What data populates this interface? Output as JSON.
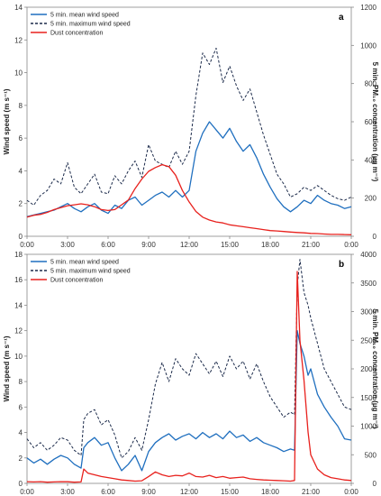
{
  "chart_data": [
    {
      "type": "line",
      "panel_label": "a",
      "x_label_ticks": [
        "0:00",
        "3:00",
        "6:00",
        "9:00",
        "12:00",
        "15:00",
        "18:00",
        "21:00",
        "0:00"
      ],
      "xlim": [
        0,
        24
      ],
      "ylabel": "Wind speed (m s⁻¹)",
      "ylim": [
        0,
        14
      ],
      "yticks": [
        0,
        2,
        4,
        6,
        8,
        10,
        12,
        14
      ],
      "y2label": "5 min. PM₁₀ concentration (µg m⁻³)",
      "y2lim": [
        0,
        1200
      ],
      "y2ticks": [
        0,
        200,
        400,
        600,
        800,
        1000,
        1200
      ],
      "legend_position": "top-left",
      "series": [
        {
          "name": "5 min. mean wind speed",
          "color": "#1f6fbf",
          "style": "solid",
          "axis": "left",
          "x": [
            0,
            0.5,
            1,
            1.5,
            2,
            2.5,
            3,
            3.5,
            4,
            4.5,
            5,
            5.5,
            6,
            6.5,
            7,
            7.5,
            8,
            8.5,
            9,
            9.5,
            10,
            10.5,
            11,
            11.5,
            12,
            12.5,
            13,
            13.5,
            14,
            14.5,
            15,
            15.5,
            16,
            16.5,
            17,
            17.5,
            18,
            18.5,
            19,
            19.5,
            20,
            20.5,
            21,
            21.5,
            22,
            22.5,
            23,
            23.5,
            24
          ],
          "values": [
            1.2,
            1.3,
            1.4,
            1.5,
            1.6,
            1.8,
            2.0,
            1.7,
            1.5,
            1.8,
            2.0,
            1.6,
            1.4,
            1.9,
            1.7,
            2.2,
            2.4,
            1.9,
            2.2,
            2.5,
            2.7,
            2.4,
            2.8,
            2.4,
            2.8,
            5.2,
            6.3,
            7.0,
            6.5,
            6.0,
            6.6,
            5.8,
            5.2,
            5.6,
            4.8,
            3.8,
            3.0,
            2.3,
            1.8,
            1.5,
            1.8,
            2.2,
            2.0,
            2.5,
            2.2,
            2.0,
            1.9,
            1.7,
            1.8
          ]
        },
        {
          "name": "5 min. maximum wind speed",
          "color": "#1b2a4a",
          "style": "dashed",
          "axis": "left",
          "x": [
            0,
            0.5,
            1,
            1.5,
            2,
            2.5,
            3,
            3.5,
            4,
            4.5,
            5,
            5.5,
            6,
            6.5,
            7,
            7.5,
            8,
            8.5,
            9,
            9.5,
            10,
            10.5,
            11,
            11.5,
            12,
            12.5,
            13,
            13.5,
            14,
            14.5,
            15,
            15.5,
            16,
            16.5,
            17,
            17.5,
            18,
            18.5,
            19,
            19.5,
            20,
            20.5,
            21,
            21.5,
            22,
            22.5,
            23,
            23.5,
            24
          ],
          "values": [
            2.2,
            1.9,
            2.5,
            2.8,
            3.5,
            3.2,
            4.5,
            3.0,
            2.6,
            3.2,
            3.8,
            2.7,
            2.6,
            3.7,
            3.2,
            4.0,
            4.6,
            3.6,
            5.6,
            4.6,
            4.4,
            4.2,
            5.2,
            4.4,
            5.2,
            8.6,
            11.2,
            10.5,
            11.5,
            9.4,
            10.4,
            9.2,
            8.3,
            9.0,
            7.6,
            6.2,
            5.0,
            3.8,
            3.2,
            2.4,
            2.6,
            3.0,
            2.8,
            3.1,
            2.8,
            2.5,
            2.3,
            2.2,
            2.4
          ]
        },
        {
          "name": "Dust concentration",
          "color": "#e8211d",
          "style": "solid",
          "axis": "right",
          "x": [
            0,
            0.5,
            1,
            1.5,
            2,
            2.5,
            3,
            3.5,
            4,
            4.5,
            5,
            5.5,
            6,
            6.5,
            7,
            7.5,
            8,
            8.5,
            9,
            9.5,
            10,
            10.5,
            11,
            11.5,
            12,
            12.5,
            13,
            13.5,
            14,
            14.5,
            15,
            15.5,
            16,
            16.5,
            17,
            17.5,
            18,
            18.5,
            19,
            19.5,
            20,
            20.5,
            21,
            21.5,
            22,
            22.5,
            23,
            23.5,
            24
          ],
          "values": [
            100,
            110,
            115,
            125,
            140,
            150,
            160,
            165,
            170,
            165,
            155,
            140,
            135,
            140,
            165,
            190,
            250,
            300,
            340,
            360,
            375,
            365,
            320,
            240,
            180,
            130,
            100,
            85,
            75,
            70,
            60,
            55,
            50,
            45,
            40,
            35,
            30,
            28,
            25,
            22,
            20,
            18,
            15,
            14,
            12,
            10,
            10,
            9,
            8
          ]
        }
      ]
    },
    {
      "type": "line",
      "panel_label": "b",
      "x_label_ticks": [
        "0:00",
        "3:00",
        "6:00",
        "9:00",
        "12:00",
        "15:00",
        "18:00",
        "21:00",
        "0:00"
      ],
      "xlim": [
        0,
        24
      ],
      "ylabel": "Wind speed (m s⁻¹)",
      "ylim": [
        0,
        18
      ],
      "yticks": [
        0,
        2,
        4,
        6,
        8,
        10,
        12,
        14,
        16,
        18
      ],
      "y2label": "5 min. PM₁₀ concentration (µg m⁻³)",
      "y2lim": [
        0,
        4000
      ],
      "y2ticks": [
        0,
        500,
        1000,
        1500,
        2000,
        2500,
        3000,
        3500,
        4000
      ],
      "legend_position": "top-left",
      "series": [
        {
          "name": "5 min. mean wind speed",
          "color": "#1f6fbf",
          "style": "solid",
          "axis": "left",
          "x": [
            0,
            0.5,
            1,
            1.5,
            2,
            2.5,
            3,
            3.5,
            4,
            4.2,
            4.5,
            5,
            5.5,
            6,
            6.5,
            7,
            7.5,
            8,
            8.5,
            9,
            9.5,
            10,
            10.5,
            11,
            11.5,
            12,
            12.5,
            13,
            13.5,
            14,
            14.5,
            15,
            15.5,
            16,
            16.5,
            17,
            17.5,
            18,
            18.5,
            19,
            19.5,
            19.8,
            20,
            20.2,
            20.5,
            20.8,
            21,
            21.5,
            22,
            22.5,
            23,
            23.5,
            24
          ],
          "values": [
            2.0,
            1.6,
            1.9,
            1.5,
            1.9,
            2.2,
            2.0,
            1.5,
            1.2,
            2.8,
            3.2,
            3.6,
            3.0,
            3.2,
            2.0,
            1.0,
            1.5,
            2.2,
            1.0,
            2.5,
            3.2,
            3.6,
            3.9,
            3.4,
            3.7,
            3.9,
            3.5,
            4.0,
            3.6,
            3.9,
            3.5,
            4.1,
            3.6,
            3.8,
            3.3,
            3.6,
            3.2,
            3.0,
            2.8,
            2.5,
            2.7,
            2.6,
            12.0,
            11.0,
            10.0,
            8.5,
            9.0,
            7.0,
            6.0,
            5.2,
            4.5,
            3.5,
            3.4
          ]
        },
        {
          "name": "5 min. maximum wind speed",
          "color": "#1b2a4a",
          "style": "dashed",
          "axis": "left",
          "x": [
            0,
            0.5,
            1,
            1.5,
            2,
            2.5,
            3,
            3.5,
            4,
            4.2,
            4.5,
            5,
            5.5,
            6,
            6.5,
            7,
            7.5,
            8,
            8.5,
            9,
            9.5,
            10,
            10.5,
            11,
            11.5,
            12,
            12.5,
            13,
            13.5,
            14,
            14.5,
            15,
            15.5,
            16,
            16.5,
            17,
            17.5,
            18,
            18.5,
            19,
            19.5,
            19.8,
            20,
            20.2,
            20.5,
            20.8,
            21,
            21.5,
            22,
            22.5,
            23,
            23.5,
            24
          ],
          "values": [
            3.5,
            2.8,
            3.2,
            2.6,
            3.0,
            3.6,
            3.4,
            2.6,
            2.2,
            5.0,
            5.5,
            5.8,
            4.6,
            5.0,
            3.8,
            2.0,
            2.5,
            3.6,
            2.6,
            5.0,
            7.8,
            9.5,
            8.0,
            9.8,
            9.0,
            8.5,
            10.2,
            9.4,
            8.6,
            9.6,
            8.4,
            10.0,
            9.0,
            9.6,
            8.2,
            9.4,
            8.0,
            6.8,
            6.0,
            5.2,
            5.6,
            5.4,
            15.5,
            17.6,
            15.0,
            14.0,
            13.0,
            11.0,
            9.0,
            8.0,
            7.0,
            6.0,
            5.8
          ]
        },
        {
          "name": "Dust concentration",
          "color": "#e8211d",
          "style": "solid",
          "axis": "right",
          "x": [
            0,
            0.5,
            1,
            1.5,
            2,
            2.5,
            3,
            3.5,
            4,
            4.2,
            4.5,
            5,
            5.5,
            6,
            6.5,
            7,
            7.5,
            8,
            8.5,
            9,
            9.5,
            10,
            10.5,
            11,
            11.5,
            12,
            12.5,
            13,
            13.5,
            14,
            14.5,
            15,
            15.5,
            16,
            16.5,
            17,
            17.5,
            18,
            18.5,
            19,
            19.5,
            19.8,
            20,
            20.2,
            20.5,
            20.8,
            21,
            21.5,
            22,
            22.5,
            23,
            23.5,
            24
          ],
          "values": [
            30,
            25,
            30,
            20,
            25,
            30,
            28,
            20,
            25,
            250,
            180,
            150,
            120,
            100,
            80,
            60,
            50,
            40,
            45,
            120,
            200,
            150,
            120,
            140,
            130,
            180,
            120,
            110,
            140,
            100,
            120,
            90,
            100,
            110,
            80,
            70,
            60,
            55,
            50,
            45,
            40,
            50,
            3700,
            2500,
            1800,
            900,
            500,
            250,
            150,
            100,
            80,
            60,
            50
          ]
        }
      ]
    }
  ]
}
